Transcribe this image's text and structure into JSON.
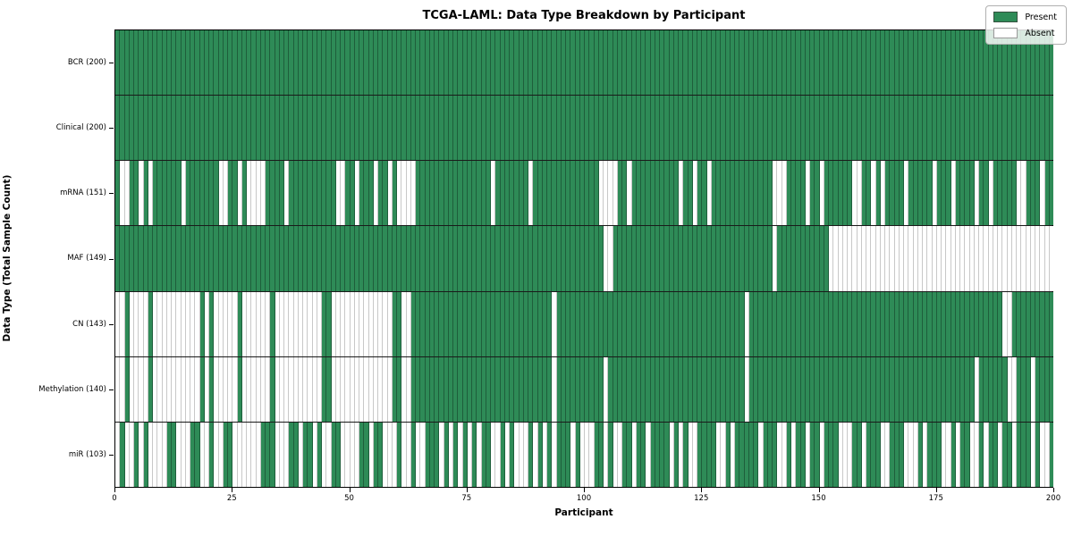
{
  "title": "TCGA-LAML: Data Type Breakdown by Participant",
  "colors": {
    "present": "#2e8b57",
    "absent": "#ffffff",
    "present_edge": "#1e5e3b",
    "absent_edge": "#c8c8c8",
    "row_separator": "#1a1a1a",
    "spine": "#000000"
  },
  "legend": {
    "items": [
      {
        "label": "Present",
        "key": "present"
      },
      {
        "label": "Absent",
        "key": "absent"
      }
    ]
  },
  "chart_data": {
    "type": "heatmap",
    "title": "TCGA-LAML: Data Type Breakdown by Participant",
    "xlabel": "Participant",
    "ylabel": "Data Type (Total Sample Count)",
    "x_ticks": [
      0,
      25,
      50,
      75,
      100,
      125,
      150,
      175,
      200
    ],
    "xlim": [
      0,
      200
    ],
    "n_participants": 200,
    "legend_position": "upper right",
    "grid": false,
    "encoding": "each row has 200 cells (participants 0-199); cells listed in absent_indices are white (Absent), all others green (Present)",
    "rows": [
      {
        "label": "BCR (200)",
        "name": "BCR",
        "present_count": 200,
        "absent_indices": []
      },
      {
        "label": "Clinical (200)",
        "name": "Clinical",
        "present_count": 200,
        "absent_indices": []
      },
      {
        "label": "mRNA (151)",
        "name": "mRNA",
        "present_count": 151,
        "absent_indices": [
          1,
          2,
          5,
          7,
          14,
          22,
          23,
          26,
          28,
          29,
          30,
          31,
          36,
          47,
          48,
          51,
          55,
          58,
          60,
          61,
          62,
          63,
          80,
          88,
          103,
          104,
          105,
          106,
          109,
          120,
          123,
          126,
          140,
          141,
          142,
          147,
          150,
          157,
          158,
          161,
          163,
          168,
          174,
          178,
          183,
          186,
          192,
          193,
          197
        ]
      },
      {
        "label": "MAF (149)",
        "name": "MAF",
        "present_count": 149,
        "absent_indices": [
          104,
          105,
          140,
          152,
          153,
          154,
          155,
          156,
          157,
          158,
          159,
          160,
          161,
          162,
          163,
          164,
          165,
          166,
          167,
          168,
          169,
          170,
          171,
          172,
          173,
          174,
          175,
          176,
          177,
          178,
          179,
          180,
          181,
          182,
          183,
          184,
          185,
          186,
          187,
          188,
          189,
          190,
          191,
          192,
          193,
          194,
          195,
          196,
          197,
          198,
          199
        ]
      },
      {
        "label": "CN (143)",
        "name": "CN",
        "present_count": 143,
        "absent_indices": [
          0,
          1,
          3,
          4,
          5,
          6,
          8,
          9,
          10,
          11,
          12,
          13,
          14,
          15,
          16,
          17,
          19,
          21,
          22,
          23,
          24,
          25,
          27,
          28,
          29,
          30,
          31,
          32,
          34,
          35,
          36,
          37,
          38,
          39,
          40,
          41,
          42,
          43,
          46,
          47,
          48,
          49,
          50,
          51,
          52,
          53,
          54,
          55,
          56,
          57,
          58,
          61,
          62,
          93,
          134,
          189,
          190
        ]
      },
      {
        "label": "Methylation (140)",
        "name": "Methylation",
        "present_count": 140,
        "absent_indices": [
          0,
          1,
          3,
          4,
          5,
          6,
          8,
          9,
          10,
          11,
          12,
          13,
          14,
          15,
          16,
          17,
          19,
          21,
          22,
          23,
          24,
          25,
          27,
          28,
          29,
          30,
          31,
          32,
          34,
          35,
          36,
          37,
          38,
          39,
          40,
          41,
          42,
          43,
          46,
          47,
          48,
          49,
          50,
          51,
          52,
          53,
          54,
          55,
          56,
          57,
          58,
          61,
          62,
          93,
          104,
          134,
          183,
          190,
          191,
          195
        ]
      },
      {
        "label": "miR (103)",
        "name": "miR",
        "present_count": 103,
        "absent_indices": [
          0,
          2,
          3,
          5,
          7,
          8,
          9,
          10,
          13,
          14,
          15,
          18,
          19,
          21,
          22,
          25,
          26,
          27,
          28,
          29,
          30,
          34,
          35,
          36,
          39,
          42,
          44,
          45,
          48,
          49,
          50,
          51,
          54,
          57,
          58,
          59,
          61,
          62,
          64,
          65,
          69,
          71,
          73,
          75,
          77,
          80,
          81,
          83,
          85,
          86,
          87,
          89,
          91,
          93,
          97,
          99,
          100,
          101,
          104,
          106,
          107,
          110,
          113,
          118,
          120,
          122,
          123,
          128,
          129,
          131,
          137,
          141,
          142,
          144,
          147,
          150,
          154,
          155,
          156,
          159,
          163,
          164,
          168,
          169,
          170,
          172,
          176,
          177,
          179,
          182,
          183,
          185,
          188,
          191,
          195,
          197,
          198
        ]
      }
    ]
  }
}
